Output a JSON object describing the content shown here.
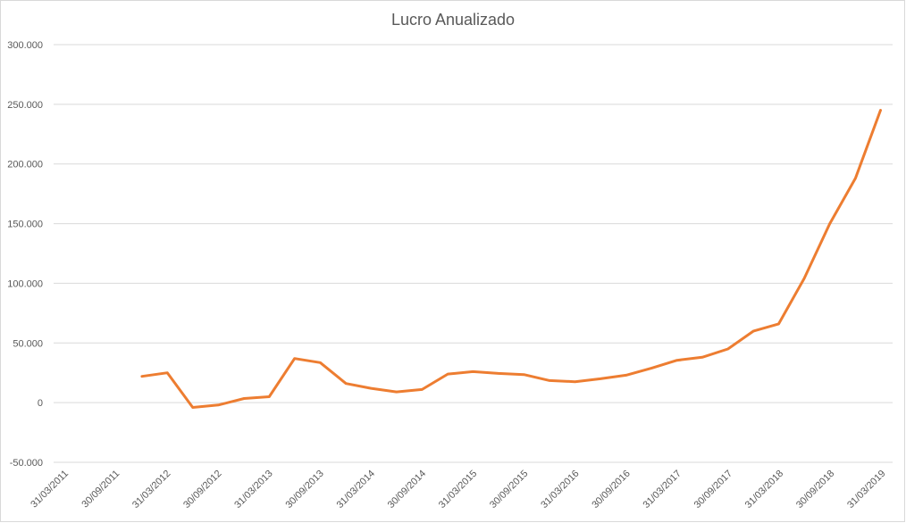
{
  "chart_data": {
    "type": "line",
    "title": "Lucro Anualizado",
    "xlabel": "",
    "ylabel": "",
    "ylim": [
      -50000,
      300000
    ],
    "y_ticks": [
      "-50.000",
      "0",
      "50.000",
      "100.000",
      "150.000",
      "200.000",
      "250.000",
      "300.000"
    ],
    "y_tick_values": [
      -50000,
      0,
      50000,
      100000,
      150000,
      200000,
      250000,
      300000
    ],
    "x_tick_labels": [
      "31/03/2011",
      "30/09/2011",
      "31/03/2012",
      "30/09/2012",
      "31/03/2013",
      "30/09/2013",
      "31/03/2014",
      "30/09/2014",
      "31/03/2015",
      "30/09/2015",
      "31/03/2016",
      "30/09/2016",
      "31/03/2017",
      "30/09/2017",
      "31/03/2018",
      "30/09/2018",
      "31/03/2019"
    ],
    "grid": true,
    "legend": "none",
    "series": [
      {
        "color": "#ED7D31",
        "points": [
          {
            "x": "31/12/2011",
            "y": 22000
          },
          {
            "x": "31/03/2012",
            "y": 25000
          },
          {
            "x": "30/06/2012",
            "y": -4000
          },
          {
            "x": "30/09/2012",
            "y": -2000
          },
          {
            "x": "31/12/2012",
            "y": 3500
          },
          {
            "x": "31/03/2013",
            "y": 5000
          },
          {
            "x": "30/06/2013",
            "y": 37000
          },
          {
            "x": "30/09/2013",
            "y": 33500
          },
          {
            "x": "31/12/2013",
            "y": 16000
          },
          {
            "x": "31/03/2014",
            "y": 12000
          },
          {
            "x": "30/06/2014",
            "y": 9000
          },
          {
            "x": "30/09/2014",
            "y": 11000
          },
          {
            "x": "31/12/2014",
            "y": 24000
          },
          {
            "x": "31/03/2015",
            "y": 26000
          },
          {
            "x": "30/06/2015",
            "y": 24500
          },
          {
            "x": "30/09/2015",
            "y": 23500
          },
          {
            "x": "31/12/2015",
            "y": 18500
          },
          {
            "x": "31/03/2016",
            "y": 17500
          },
          {
            "x": "30/06/2016",
            "y": 20000
          },
          {
            "x": "30/09/2016",
            "y": 23000
          },
          {
            "x": "31/12/2016",
            "y": 29000
          },
          {
            "x": "31/03/2017",
            "y": 35500
          },
          {
            "x": "30/06/2017",
            "y": 38000
          },
          {
            "x": "30/09/2017",
            "y": 45000
          },
          {
            "x": "31/12/2017",
            "y": 60000
          },
          {
            "x": "31/03/2018",
            "y": 66000
          },
          {
            "x": "30/06/2018",
            "y": 104000
          },
          {
            "x": "30/09/2018",
            "y": 150000
          },
          {
            "x": "31/12/2018",
            "y": 188000
          },
          {
            "x": "31/03/2019",
            "y": 245000
          }
        ]
      }
    ]
  }
}
